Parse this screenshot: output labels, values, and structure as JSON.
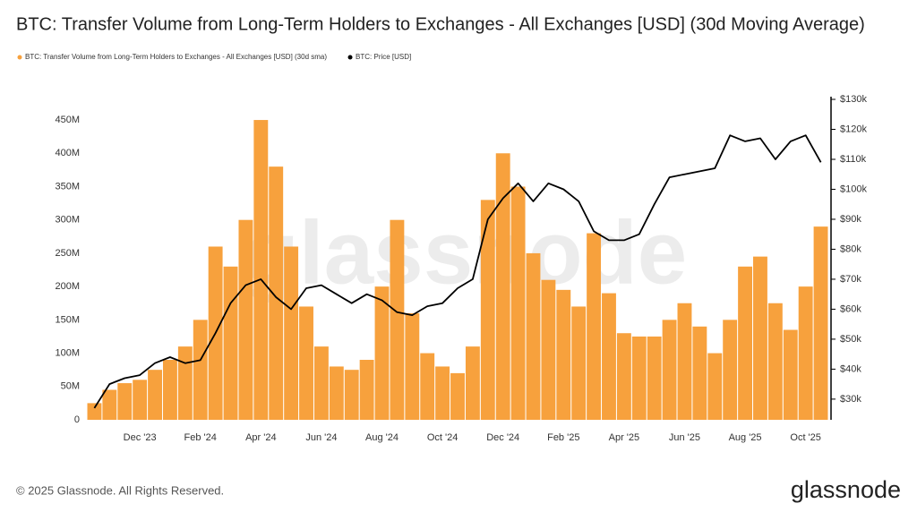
{
  "chart_data": {
    "type": "bar",
    "title": "BTC: Transfer Volume from Long-Term Holders to Exchanges - All Exchanges [USD] (30d Moving Average)",
    "watermark": "glassnode",
    "footer": "© 2025 Glassnode. All Rights Reserved.",
    "logo": "glassnode",
    "categories": [
      null,
      null,
      null,
      "Dec '23",
      null,
      null,
      null,
      "Feb '24",
      null,
      null,
      null,
      "Apr '24",
      null,
      null,
      null,
      "Jun '24",
      null,
      null,
      null,
      "Aug '24",
      null,
      null,
      null,
      "Oct '24",
      null,
      null,
      null,
      "Dec '24",
      null,
      null,
      null,
      "Feb '25",
      null,
      null,
      null,
      "Apr '25",
      null,
      null,
      null,
      "Jun '25",
      null,
      null,
      null,
      "Aug '25",
      null,
      null,
      null,
      "Oct '25",
      null
    ],
    "series": [
      {
        "name": "BTC: Transfer Volume from Long-Term Holders to Exchanges - All Exchanges [USD] (30d sma)",
        "type": "bar",
        "color": "#f7a13d",
        "axis": "y",
        "values": [
          25000000,
          45000000,
          55000000,
          60000000,
          75000000,
          90000000,
          110000000,
          150000000,
          260000000,
          230000000,
          300000000,
          450000000,
          380000000,
          260000000,
          170000000,
          110000000,
          80000000,
          75000000,
          90000000,
          200000000,
          300000000,
          160000000,
          100000000,
          80000000,
          70000000,
          110000000,
          330000000,
          400000000,
          350000000,
          250000000,
          210000000,
          195000000,
          170000000,
          280000000,
          190000000,
          130000000,
          125000000,
          125000000,
          150000000,
          175000000,
          140000000,
          100000000,
          150000000,
          230000000,
          245000000,
          175000000,
          135000000,
          200000000,
          290000000
        ]
      },
      {
        "name": "BTC: Price [USD]",
        "type": "line",
        "color": "#000000",
        "axis": "y2",
        "values": [
          27000,
          35000,
          37000,
          38000,
          42000,
          44000,
          42000,
          43000,
          52000,
          62000,
          68000,
          70000,
          64000,
          60000,
          67000,
          68000,
          65000,
          62000,
          65000,
          63000,
          59000,
          58000,
          61000,
          62000,
          67000,
          70000,
          90000,
          97000,
          102000,
          96000,
          102000,
          100000,
          96000,
          86000,
          83000,
          83000,
          85000,
          95000,
          104000,
          105000,
          106000,
          107000,
          118000,
          116000,
          117000,
          110000,
          116000,
          118000,
          109000
        ]
      }
    ],
    "ylim": [
      0,
      485000000
    ],
    "yticks": [
      0,
      {
        "value": 50000000,
        "label": "50M"
      },
      {
        "value": 100000000,
        "label": "100M"
      },
      {
        "value": 150000000,
        "label": "150M"
      },
      {
        "value": 200000000,
        "label": "200M"
      },
      {
        "value": 250000000,
        "label": "250M"
      },
      {
        "value": 300000000,
        "label": "300M"
      },
      {
        "value": 350000000,
        "label": "350M"
      },
      {
        "value": 400000000,
        "label": "400M"
      },
      {
        "value": 450000000,
        "label": "450M"
      }
    ],
    "y2lim": [
      23100,
      130900
    ],
    "y2ticks": [
      {
        "value": 30000,
        "label": "$30k"
      },
      {
        "value": 40000,
        "label": "$40k"
      },
      {
        "value": 50000,
        "label": "$50k"
      },
      {
        "value": 60000,
        "label": "$60k"
      },
      {
        "value": 70000,
        "label": "$70k"
      },
      {
        "value": 80000,
        "label": "$80k"
      },
      {
        "value": 90000,
        "label": "$90k"
      },
      {
        "value": 100000,
        "label": "$100k"
      },
      {
        "value": 110000,
        "label": "$110k"
      },
      {
        "value": 120000,
        "label": "$120k"
      },
      {
        "value": 130000,
        "label": "$130k"
      }
    ],
    "grid": false,
    "legend": "top-left"
  }
}
